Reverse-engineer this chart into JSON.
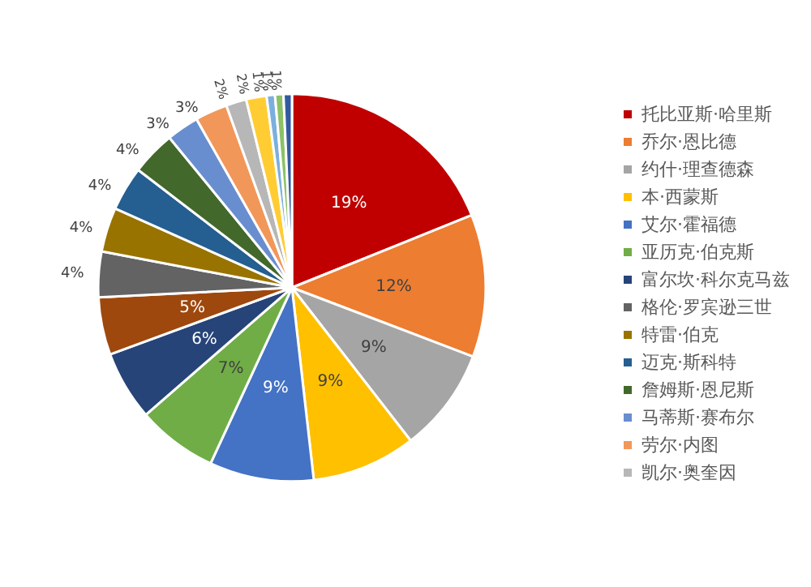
{
  "chart_data": {
    "type": "pie",
    "categories": [
      "托比亚斯·哈里斯",
      "乔尔·恩比德",
      "约什·理查德森",
      "本·西蒙斯",
      "艾尔·霍福德",
      "亚历克·伯克斯",
      "富尔坎·科尔克马兹",
      null,
      "格伦·罗宾逊三世",
      "特雷·伯克",
      "迈克·斯科特",
      "詹姆斯·恩尼斯",
      "马蒂斯·赛布尔",
      "劳尔·内图",
      "凯尔·奥奎因",
      null,
      null,
      null,
      null
    ],
    "values": [
      18.9,
      11.9,
      8.7,
      8.7,
      8.7,
      6.7,
      5.8,
      4.8,
      3.8,
      3.7,
      3.7,
      3.7,
      2.7,
      2.7,
      1.7,
      1.7,
      0.7,
      0.7,
      0.7
    ],
    "value_labels": [
      "19%",
      "12%",
      "9%",
      "9%",
      "9%",
      "7%",
      "6%",
      "5%",
      "4%",
      "4%",
      "4%",
      "4%",
      "3%",
      "3%",
      "2%",
      "2%",
      "1%",
      "1%",
      "1%"
    ],
    "colors": [
      "#c00000",
      "#ed7d31",
      "#a5a5a5",
      "#ffc000",
      "#4472c4",
      "#70ad47",
      "#264478",
      "#9e480e",
      "#636363",
      "#997300",
      "#255e91",
      "#43682b",
      "#698ed0",
      "#f1975a",
      "#b7b7b7",
      "#ffcd33",
      "#7cafdd",
      "#8cc168",
      "#335aa1"
    ],
    "legend": "right"
  }
}
